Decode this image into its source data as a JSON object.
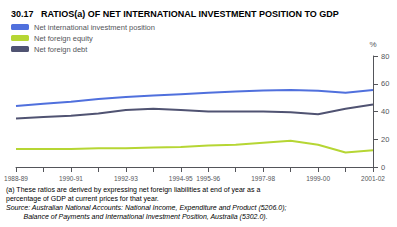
{
  "chart_data": {
    "type": "line",
    "title": "30.17   RATIOS(a) OF NET INTERNATIONAL INVESTMENT POSITION TO GDP",
    "categories": [
      "1988-89",
      null,
      "1990-91",
      null,
      "1992-93",
      null,
      "1994-95",
      "1995-96",
      null,
      "1997-98",
      null,
      "1999-00",
      null,
      "2001-02"
    ],
    "series": [
      {
        "name": "Net international investment position",
        "values": [
          44,
          45.5,
          47,
          49,
          50.5,
          51.5,
          52.5,
          53.5,
          54.5,
          55.2,
          55.5,
          55.0,
          53.5,
          55.5
        ]
      },
      {
        "name": "Net foreign equity",
        "values": [
          13,
          13.0,
          13,
          13.5,
          13.5,
          14.0,
          14.5,
          15.5,
          16.0,
          17.5,
          19.0,
          16.0,
          10.5,
          12.0
        ]
      },
      {
        "name": "Net foreign debt",
        "values": [
          35,
          36.0,
          37,
          38.5,
          41.0,
          42.0,
          41.0,
          40.0,
          40.0,
          40.0,
          39.5,
          38.0,
          42.0,
          45.0
        ]
      }
    ],
    "ylabel": "%",
    "ylim": [
      0,
      80
    ],
    "yticks": [
      0,
      20,
      40,
      60,
      80
    ],
    "grid": false,
    "legend": "upper left",
    "annotations": [
      "(a) These ratios are derived by expressing net foreign liabilities at end of year as a",
      "percentage of GDP at current prices for that year.",
      "Source: Australian National Accounts: National Income, Expenditure and Product (5206.0);",
      "         Balance of Payments and International Investment Position, Australia (5302.0)."
    ]
  }
}
